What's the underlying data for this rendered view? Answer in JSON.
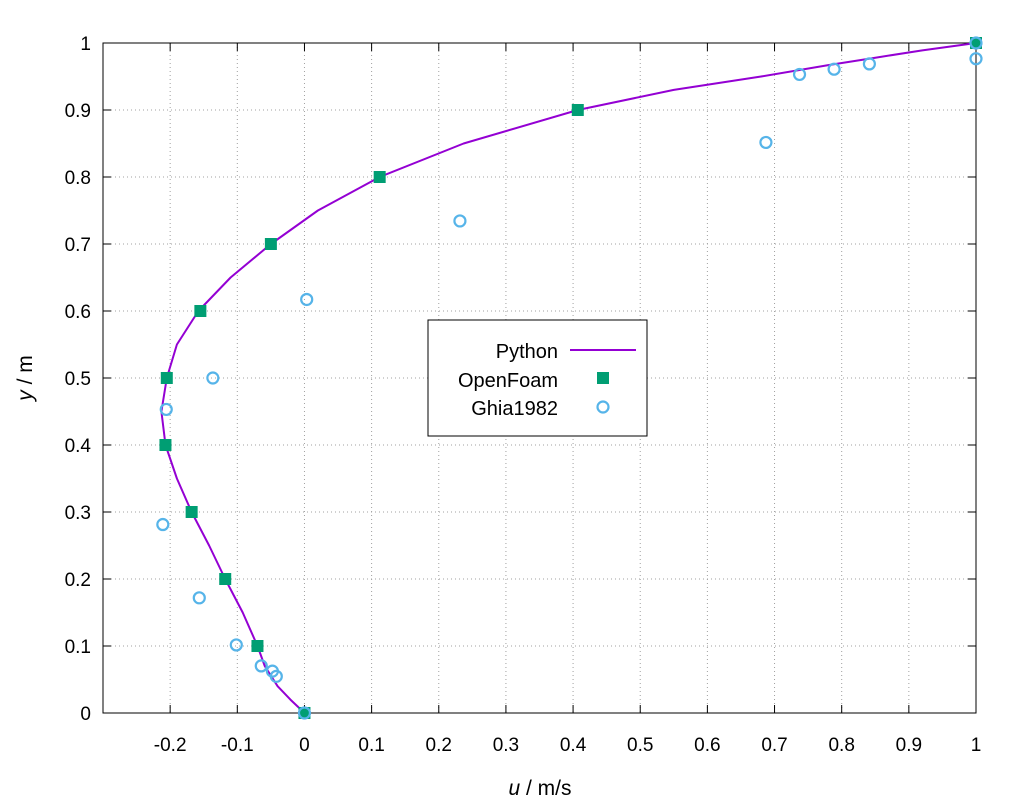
{
  "chart_data": {
    "type": "line",
    "xlabel": {
      "var": "u",
      "unit": " / m/s"
    },
    "ylabel": {
      "var": "y",
      "unit": " / m"
    },
    "xlim": [
      -0.3,
      1.0
    ],
    "ylim": [
      0,
      1
    ],
    "x_ticks": [
      -0.2,
      -0.1,
      0,
      0.1,
      0.2,
      0.3,
      0.4,
      0.5,
      0.6,
      0.7,
      0.8,
      0.9,
      1
    ],
    "x_tick_labels": [
      "-0.2",
      "-0.1",
      "0",
      "0.1",
      "0.2",
      "0.3",
      "0.4",
      "0.5",
      "0.6",
      "0.7",
      "0.8",
      "0.9",
      "1"
    ],
    "y_ticks": [
      0,
      0.1,
      0.2,
      0.3,
      0.4,
      0.5,
      0.6,
      0.7,
      0.8,
      0.9,
      1
    ],
    "y_tick_labels": [
      "0",
      "0.1",
      "0.2",
      "0.3",
      "0.4",
      "0.5",
      "0.6",
      "0.7",
      "0.8",
      "0.9",
      "1"
    ],
    "grid": true,
    "legend_position": "center",
    "series": [
      {
        "name": "Python",
        "style": "line",
        "color": "#9400d3",
        "points": [
          [
            0,
            0
          ],
          [
            -0.021,
            0.02
          ],
          [
            -0.04,
            0.04
          ],
          [
            -0.059,
            0.07
          ],
          [
            -0.07,
            0.1
          ],
          [
            -0.092,
            0.15
          ],
          [
            -0.118,
            0.2
          ],
          [
            -0.142,
            0.25
          ],
          [
            -0.168,
            0.3
          ],
          [
            -0.19,
            0.35
          ],
          [
            -0.207,
            0.4
          ],
          [
            -0.213,
            0.45
          ],
          [
            -0.205,
            0.5
          ],
          [
            -0.19,
            0.55
          ],
          [
            -0.158,
            0.6
          ],
          [
            -0.11,
            0.65
          ],
          [
            -0.05,
            0.7
          ],
          [
            0.02,
            0.75
          ],
          [
            0.112,
            0.8
          ],
          [
            0.237,
            0.85
          ],
          [
            0.407,
            0.9
          ],
          [
            0.55,
            0.93
          ],
          [
            0.68,
            0.95
          ],
          [
            0.78,
            0.967
          ],
          [
            0.85,
            0.978
          ],
          [
            0.92,
            0.989
          ],
          [
            1.0,
            1.0
          ]
        ]
      },
      {
        "name": "OpenFoam",
        "style": "filled-square",
        "color": "#009e73",
        "points": [
          [
            0,
            0
          ],
          [
            -0.07,
            0.1
          ],
          [
            -0.118,
            0.2
          ],
          [
            -0.168,
            0.3
          ],
          [
            -0.207,
            0.4
          ],
          [
            -0.205,
            0.5
          ],
          [
            -0.155,
            0.6
          ],
          [
            -0.05,
            0.7
          ],
          [
            0.112,
            0.8
          ],
          [
            0.407,
            0.9
          ],
          [
            1.0,
            1.0
          ]
        ]
      },
      {
        "name": "Ghia1982",
        "style": "open-circle",
        "color": "#56b4e9",
        "points": [
          [
            0,
            0
          ],
          [
            -0.04192,
            0.0547
          ],
          [
            -0.04775,
            0.0625
          ],
          [
            -0.06434,
            0.0703
          ],
          [
            -0.1015,
            0.1016
          ],
          [
            -0.15662,
            0.1719
          ],
          [
            -0.2109,
            0.2813
          ],
          [
            -0.20581,
            0.4531
          ],
          [
            -0.13641,
            0.5
          ],
          [
            0.00332,
            0.6172
          ],
          [
            0.23151,
            0.7344
          ],
          [
            0.68717,
            0.8516
          ],
          [
            0.73722,
            0.9531
          ],
          [
            0.78871,
            0.9609
          ],
          [
            0.84123,
            0.9688
          ],
          [
            1.0,
            0.9766
          ],
          [
            1.0,
            1.0
          ]
        ]
      }
    ]
  }
}
